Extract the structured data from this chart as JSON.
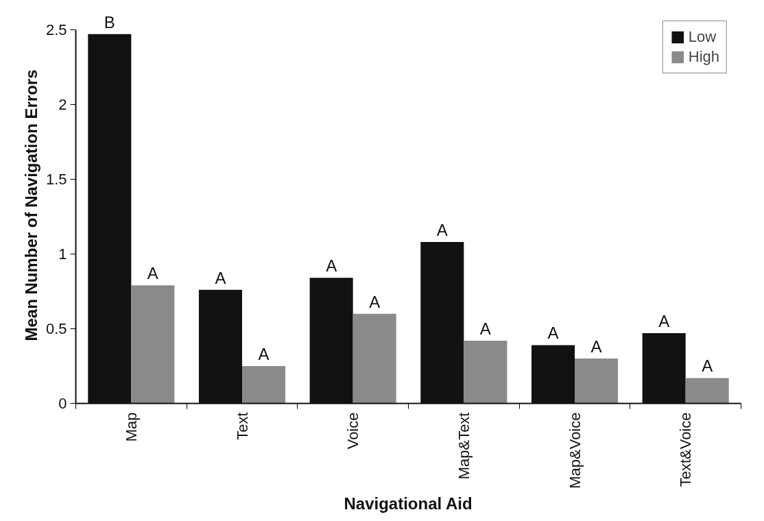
{
  "chart_data": {
    "type": "bar",
    "xlabel": "Navigational Aid",
    "ylabel": "Mean Number of Navigation Errors",
    "categories": [
      "Map",
      "Text",
      "Voice",
      "Map&Text",
      "Map&Voice",
      "Text&Voice"
    ],
    "series": [
      {
        "name": "Low",
        "color": "#111111",
        "values": [
          2.47,
          0.76,
          0.84,
          1.08,
          0.39,
          0.47
        ]
      },
      {
        "name": "High",
        "color": "#8a8a8a",
        "values": [
          0.79,
          0.25,
          0.6,
          0.42,
          0.3,
          0.17
        ]
      }
    ],
    "ylim": [
      0,
      2.5
    ],
    "yticks": [
      0,
      0.5,
      1,
      1.5,
      2,
      2.5
    ],
    "grid": false,
    "legend": "top right",
    "annotations": [
      {
        "text": "B",
        "x": "Map",
        "y": 2.47
      },
      {
        "text": "A",
        "x": "Map",
        "y": 0.79
      },
      {
        "text": "A",
        "x": "Text",
        "y": 0.76
      },
      {
        "text": "A",
        "x": "Text",
        "y": 0.25
      },
      {
        "text": "A",
        "x": "Voice",
        "y": 0.84
      },
      {
        "text": "A",
        "x": "Voice",
        "y": 0.6
      },
      {
        "text": "A",
        "x": "Map&Text",
        "y": 1.08
      },
      {
        "text": "A",
        "x": "Map&Text",
        "y": 0.42
      },
      {
        "text": "A",
        "x": "Map&Voice",
        "y": 0.39
      },
      {
        "text": "A",
        "x": "Map&Voice",
        "y": 0.3
      },
      {
        "text": "A",
        "x": "Text&Voice",
        "y": 0.47
      },
      {
        "text": "A",
        "x": "Text&Voice",
        "y": 0.17
      }
    ]
  }
}
